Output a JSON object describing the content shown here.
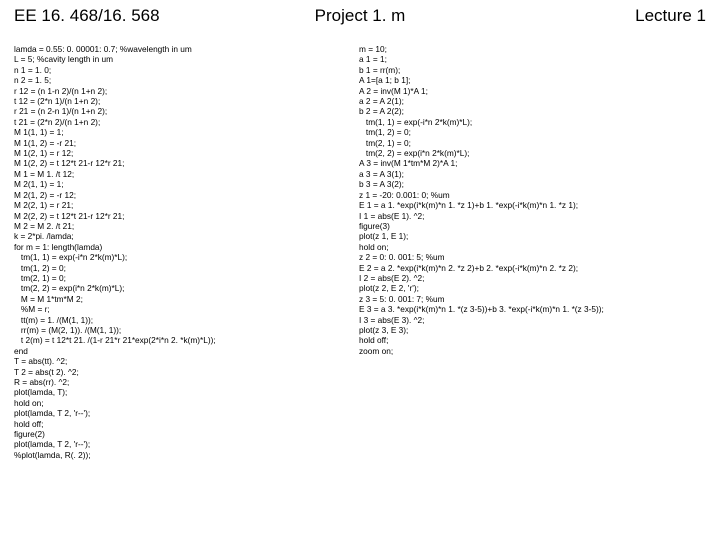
{
  "header": {
    "left": "EE 16. 468/16. 568",
    "center": "Project 1. m",
    "right": "Lecture 1"
  },
  "code": {
    "left": [
      "lamda = 0.55: 0. 00001: 0.7; %wavelength in um",
      "L = 5; %cavity length in um",
      "n 1 = 1. 0;",
      "n 2 = 1. 5;",
      "r 12 = (n 1-n 2)/(n 1+n 2);",
      "t 12 = (2*n 1)/(n 1+n 2);",
      "r 21 = (n 2-n 1)/(n 1+n 2);",
      "t 21 = (2*n 2)/(n 1+n 2);",
      "M 1(1, 1) = 1;",
      "M 1(1, 2) = -r 21;",
      "M 1(2, 1) = r 12;",
      "M 1(2, 2) = t 12*t 21-r 12*r 21;",
      "M 1 = M 1. /t 12;",
      "M 2(1, 1) = 1;",
      "M 2(1, 2) = -r 12;",
      "M 2(2, 1) = r 21;",
      "M 2(2, 2) = t 12*t 21-r 12*r 21;",
      "M 2 = M 2. /t 21;",
      "k = 2*pi. /lamda;",
      "for m = 1: length(lamda)",
      "   tm(1, 1) = exp(-i*n 2*k(m)*L);",
      "   tm(1, 2) = 0;",
      "   tm(2, 1) = 0;",
      "   tm(2, 2) = exp(i*n 2*k(m)*L);",
      "   M = M 1*tm*M 2;",
      "   %M = r;",
      "   tt(m) = 1. /(M(1, 1));",
      "   rr(m) = (M(2, 1)). /(M(1, 1));",
      "   t 2(m) = t 12*t 21. /(1-r 21*r 21*exp(2*i*n 2. *k(m)*L));",
      "end",
      "T = abs(tt). ^2;",
      "T 2 = abs(t 2). ^2;",
      "R = abs(rr). ^2;",
      "plot(lamda, T);",
      "hold on;",
      "plot(lamda, T 2, 'r--');",
      "hold off;",
      "figure(2)",
      "plot(lamda, T 2, 'r--');",
      "%plot(lamda, R(. 2));"
    ],
    "right": [
      "m = 10;",
      "a 1 = 1;",
      "b 1 = rr(m);",
      "A 1=[a 1; b 1];",
      "A 2 = inv(M 1)*A 1;",
      "a 2 = A 2(1);",
      "b 2 = A 2(2);",
      "   tm(1, 1) = exp(-i*n 2*k(m)*L);",
      "   tm(1, 2) = 0;",
      "   tm(2, 1) = 0;",
      "   tm(2, 2) = exp(i*n 2*k(m)*L);",
      "A 3 = inv(M 1*tm*M 2)*A 1;",
      "a 3 = A 3(1);",
      "b 3 = A 3(2);",
      "z 1 = -20: 0.001: 0; %um",
      "E 1 = a 1. *exp(i*k(m)*n 1. *z 1)+b 1. *exp(-i*k(m)*n 1. *z 1);",
      "I 1 = abs(E 1). ^2;",
      "figure(3)",
      "plot(z 1, E 1);",
      "hold on;",
      "z 2 = 0: 0. 001: 5; %um",
      "E 2 = a 2. *exp(i*k(m)*n 2. *z 2)+b 2. *exp(-i*k(m)*n 2. *z 2);",
      "I 2 = abs(E 2). ^2;",
      "plot(z 2, E 2, 'r');",
      "z 3 = 5: 0. 001: 7; %um",
      "E 3 = a 3. *exp(i*k(m)*n 1. *(z 3-5))+b 3. *exp(-i*k(m)*n 1. *(z 3-5));",
      "I 3 = abs(E 3). ^2;",
      "plot(z 3, E 3);",
      "hold off;",
      "zoom on;"
    ]
  }
}
